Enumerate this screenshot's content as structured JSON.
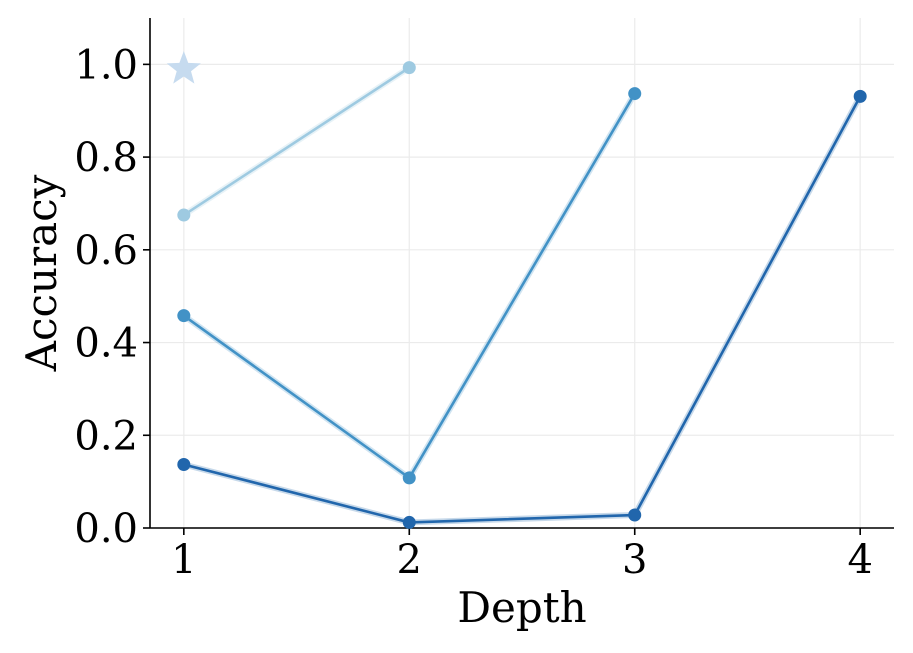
{
  "chart_data": {
    "type": "line",
    "xlabel": "Depth",
    "ylabel": "Accuracy",
    "xlim": [
      0.85,
      4.15
    ],
    "ylim": [
      0.0,
      1.1
    ],
    "xticks": [
      "1",
      "2",
      "3",
      "4"
    ],
    "yticks": [
      "0.0",
      "0.2",
      "0.4",
      "0.6",
      "0.8",
      "1.0"
    ],
    "grid": true,
    "series": [
      {
        "color": "#9ecae1",
        "x": [
          1,
          2
        ],
        "y": [
          0.675,
          0.993
        ]
      },
      {
        "color": "#4292c6",
        "x": [
          1,
          2,
          3
        ],
        "y": [
          0.458,
          0.108,
          0.937
        ]
      },
      {
        "color": "#2166ac",
        "x": [
          1,
          2,
          3,
          4
        ],
        "y": [
          0.137,
          0.012,
          0.028,
          0.931
        ]
      }
    ],
    "markers": [
      {
        "shape": "star",
        "color": "#c6dbef",
        "x": 1,
        "y": 0.99
      }
    ]
  }
}
